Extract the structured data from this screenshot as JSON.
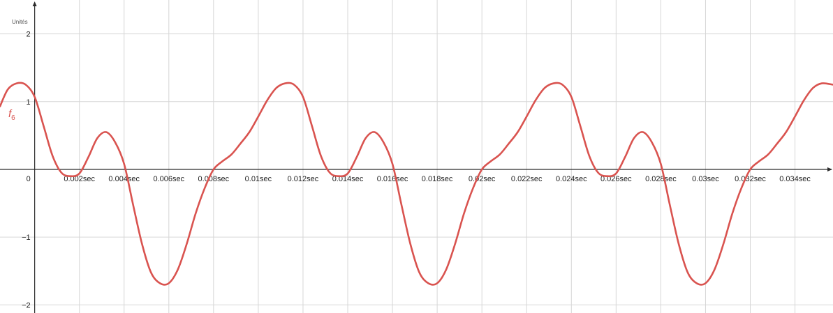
{
  "chart_data": {
    "type": "line",
    "y_unit_label": "Unités",
    "xlim": [
      -0.00155,
      0.0357
    ],
    "ylim": [
      -2.12,
      2.5
    ],
    "x_ticks": [
      {
        "value": 0,
        "label": "0"
      },
      {
        "value": 0.002,
        "label": "0.002sec"
      },
      {
        "value": 0.004,
        "label": "0.004sec"
      },
      {
        "value": 0.006,
        "label": "0.006sec"
      },
      {
        "value": 0.008,
        "label": "0.008sec"
      },
      {
        "value": 0.01,
        "label": "0.01sec"
      },
      {
        "value": 0.012,
        "label": "0.012sec"
      },
      {
        "value": 0.014,
        "label": "0.014sec"
      },
      {
        "value": 0.016,
        "label": "0.016sec"
      },
      {
        "value": 0.018,
        "label": "0.018sec"
      },
      {
        "value": 0.02,
        "label": "0.02sec"
      },
      {
        "value": 0.022,
        "label": "0.022sec"
      },
      {
        "value": 0.024,
        "label": "0.024sec"
      },
      {
        "value": 0.026,
        "label": "0.026sec"
      },
      {
        "value": 0.028,
        "label": "0.028sec"
      },
      {
        "value": 0.03,
        "label": "0.03sec"
      },
      {
        "value": 0.032,
        "label": "0.032sec"
      },
      {
        "value": 0.034,
        "label": "0.034sec"
      }
    ],
    "y_ticks": [
      {
        "value": 2,
        "label": "2"
      },
      {
        "value": 1,
        "label": "1"
      },
      {
        "value": -1,
        "label": "−1"
      },
      {
        "value": -2,
        "label": "−2"
      }
    ],
    "grid": true,
    "series": [
      {
        "name": "f",
        "subscript": "6",
        "color": "#d9534f",
        "x": [
          -0.00155,
          -0.0012,
          -0.0008,
          -0.0004,
          0,
          0.0004,
          0.0008,
          0.0012,
          0.0016,
          0.002,
          0.0024,
          0.0028,
          0.0032,
          0.0036,
          0.004,
          0.0044,
          0.0048,
          0.0052,
          0.0056,
          0.006,
          0.0064,
          0.0068,
          0.0072,
          0.0076,
          0.008,
          0.0084,
          0.0088,
          0.0092,
          0.0096,
          0.01,
          0.0104,
          0.0108,
          0.0112,
          0.0116,
          0.012,
          0.0124,
          0.0128,
          0.0132,
          0.0136,
          0.014,
          0.0144,
          0.0148,
          0.0152,
          0.0156,
          0.016,
          0.0164,
          0.0168,
          0.0172,
          0.0176,
          0.018,
          0.0184,
          0.0188,
          0.0192,
          0.0196,
          0.02,
          0.0204,
          0.0208,
          0.0212,
          0.0216,
          0.022,
          0.0224,
          0.0228,
          0.0232,
          0.0236,
          0.024,
          0.0244,
          0.0248,
          0.0252,
          0.0256,
          0.026,
          0.0264,
          0.0268,
          0.0272,
          0.0276,
          0.028,
          0.0284,
          0.0288,
          0.0292,
          0.0296,
          0.03,
          0.0304,
          0.0308,
          0.0312,
          0.0316,
          0.032,
          0.0324,
          0.0328,
          0.0332,
          0.0336,
          0.034,
          0.0344,
          0.0348,
          0.0352,
          0.0357
        ],
        "y": [
          0.93,
          1.18,
          1.27,
          1.25,
          1.07,
          0.64,
          0.2,
          -0.05,
          -0.1,
          -0.06,
          0.18,
          0.46,
          0.55,
          0.4,
          0.08,
          -0.52,
          -1.1,
          -1.52,
          -1.68,
          -1.68,
          -1.48,
          -1.1,
          -0.65,
          -0.28,
          0.0,
          0.12,
          0.22,
          0.38,
          0.55,
          0.78,
          1.02,
          1.2,
          1.27,
          1.25,
          1.07,
          0.64,
          0.2,
          -0.05,
          -0.1,
          -0.06,
          0.18,
          0.46,
          0.55,
          0.4,
          0.08,
          -0.52,
          -1.1,
          -1.52,
          -1.68,
          -1.68,
          -1.48,
          -1.1,
          -0.65,
          -0.28,
          0.0,
          0.12,
          0.22,
          0.38,
          0.55,
          0.78,
          1.02,
          1.2,
          1.27,
          1.25,
          1.07,
          0.64,
          0.2,
          -0.05,
          -0.1,
          -0.06,
          0.18,
          0.46,
          0.55,
          0.4,
          0.08,
          -0.52,
          -1.1,
          -1.52,
          -1.68,
          -1.68,
          -1.48,
          -1.1,
          -0.65,
          -0.28,
          0.0,
          0.12,
          0.22,
          0.38,
          0.55,
          0.78,
          1.02,
          1.2,
          1.27,
          1.25
        ]
      }
    ]
  }
}
